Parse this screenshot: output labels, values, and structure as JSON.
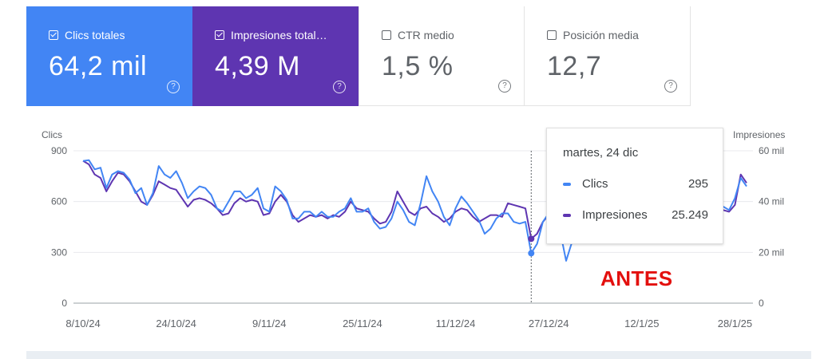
{
  "metrics": [
    {
      "label": "Clics totales",
      "value": "64,2 mil",
      "checked": true
    },
    {
      "label": "Impresiones total…",
      "value": "4,39 M",
      "checked": true
    },
    {
      "label": "CTR medio",
      "value": "1,5 %",
      "checked": false
    },
    {
      "label": "Posición media",
      "value": "12,7",
      "checked": false
    }
  ],
  "help_icon_symbol": "?",
  "tooltip": {
    "date": "martes, 24 dic",
    "rows": [
      {
        "name": "Clics",
        "value": "295",
        "color": "#4285f4"
      },
      {
        "name": "Impresiones",
        "value": "25.249",
        "color": "#5e35b1"
      }
    ]
  },
  "annotation": {
    "text": "ANTES",
    "color": "#e3100e"
  },
  "colors": {
    "clicks": "#4285f4",
    "impressions": "#5e35b1"
  },
  "chart_data": {
    "type": "line",
    "left_axis": {
      "title": "Clics",
      "ticks": [
        "900",
        "600",
        "300",
        "0"
      ],
      "tick_values": [
        900,
        600,
        300,
        0
      ],
      "ylim": [
        0,
        900
      ]
    },
    "right_axis": {
      "title": "Impresiones",
      "ticks": [
        "60 mil",
        "40 mil",
        "20 mil",
        "0"
      ],
      "tick_values": [
        60000,
        40000,
        20000,
        0
      ],
      "ylim": [
        0,
        60000
      ]
    },
    "x_ticks": [
      "8/10/24",
      "24/10/24",
      "9/11/24",
      "25/11/24",
      "11/12/24",
      "27/12/24",
      "12/1/25",
      "28/1/25"
    ],
    "x_tick_index": [
      0,
      16,
      32,
      48,
      64,
      80,
      96,
      112
    ],
    "hover_index": 77,
    "series": [
      {
        "name": "Clics",
        "axis": "left",
        "color": "#4285f4",
        "values": [
          840,
          845,
          790,
          800,
          680,
          760,
          780,
          770,
          730,
          650,
          680,
          580,
          650,
          810,
          760,
          740,
          780,
          710,
          620,
          660,
          690,
          680,
          640,
          560,
          540,
          600,
          660,
          660,
          620,
          640,
          680,
          560,
          540,
          690,
          660,
          610,
          500,
          500,
          540,
          540,
          510,
          540,
          510,
          510,
          540,
          560,
          620,
          540,
          540,
          560,
          480,
          440,
          450,
          500,
          600,
          550,
          480,
          460,
          590,
          750,
          660,
          600,
          510,
          460,
          560,
          630,
          590,
          540,
          490,
          410,
          440,
          500,
          530,
          530,
          480,
          470,
          480,
          295,
          350,
          480,
          530,
          410,
          420,
          250,
          360,
          470,
          520,
          600,
          640,
          700,
          660,
          610,
          560,
          600,
          580,
          560,
          500,
          520,
          540,
          540,
          560,
          500,
          520,
          590,
          600,
          610,
          560,
          530,
          540,
          540,
          570,
          550,
          620,
          740,
          690
        ]
      },
      {
        "name": "Impresiones",
        "axis": "left",
        "color": "#5e35b1",
        "values": [
          840,
          820,
          760,
          740,
          660,
          720,
          770,
          760,
          720,
          660,
          600,
          580,
          640,
          720,
          700,
          680,
          670,
          620,
          570,
          610,
          620,
          610,
          590,
          560,
          520,
          530,
          590,
          620,
          600,
          610,
          600,
          520,
          530,
          600,
          640,
          600,
          520,
          480,
          500,
          520,
          510,
          520,
          500,
          520,
          510,
          540,
          600,
          560,
          550,
          540,
          500,
          470,
          480,
          540,
          660,
          600,
          540,
          520,
          560,
          570,
          530,
          510,
          480,
          500,
          540,
          560,
          550,
          510,
          480,
          500,
          520,
          520,
          510,
          590,
          580,
          570,
          560,
          380,
          410,
          480,
          520,
          460,
          450,
          400,
          440,
          490,
          530,
          560,
          590,
          600,
          600,
          570,
          540,
          560,
          560,
          540,
          510,
          520,
          530,
          530,
          540,
          520,
          520,
          560,
          570,
          580,
          560,
          540,
          540,
          540,
          550,
          540,
          580,
          760,
          710
        ]
      }
    ]
  }
}
